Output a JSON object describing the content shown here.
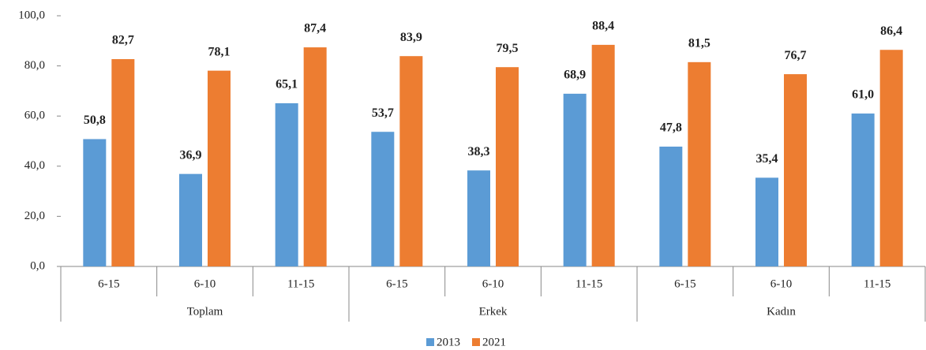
{
  "chart_data": {
    "type": "bar",
    "categories": [
      "6-15",
      "6-10",
      "11-15",
      "6-15",
      "6-10",
      "11-15",
      "6-15",
      "6-10",
      "11-15"
    ],
    "groups": [
      "Toplam",
      "Erkek",
      "Kadın"
    ],
    "series": [
      {
        "name": "2013",
        "color": "#5b9bd5",
        "values": [
          50.8,
          36.9,
          65.1,
          53.7,
          38.3,
          68.9,
          47.8,
          35.4,
          61.0
        ],
        "value_labels": [
          "50,8",
          "36,9",
          "65,1",
          "53,7",
          "38,3",
          "68,9",
          "47,8",
          "35,4",
          "61,0"
        ]
      },
      {
        "name": "2021",
        "color": "#ed7d31",
        "values": [
          82.7,
          78.1,
          87.4,
          83.9,
          79.5,
          88.4,
          81.5,
          76.7,
          86.4
        ],
        "value_labels": [
          "82,7",
          "78,1",
          "87,4",
          "83,9",
          "79,5",
          "88,4",
          "81,5",
          "76,7",
          "86,4"
        ]
      }
    ],
    "ylim": [
      0,
      100
    ],
    "yticks": [
      {
        "value": 0,
        "label": "0,0"
      },
      {
        "value": 20,
        "label": "20,0"
      },
      {
        "value": 40,
        "label": "40,0"
      },
      {
        "value": 60,
        "label": "60,0"
      },
      {
        "value": 80,
        "label": "80,0"
      },
      {
        "value": 100,
        "label": "100,0"
      }
    ],
    "grid": false,
    "legend": "bottom"
  }
}
